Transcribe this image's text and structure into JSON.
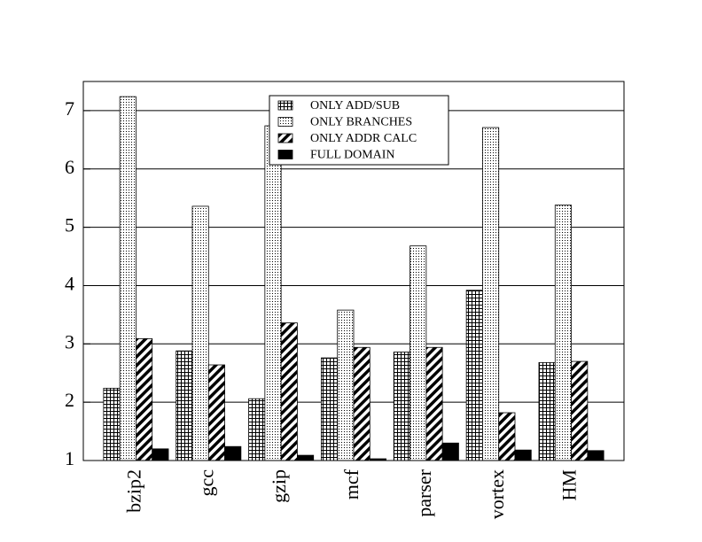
{
  "chart_data": {
    "type": "bar",
    "categories": [
      "bzip2",
      "gcc",
      "gzip",
      "mcf",
      "parser",
      "vortex",
      "HM"
    ],
    "series": [
      {
        "name": "ONLY ADD/SUB",
        "color": "#000000",
        "pattern": "crosshatch",
        "values": [
          2.24,
          2.88,
          2.06,
          2.76,
          2.86,
          3.92,
          2.68
        ]
      },
      {
        "name": "ONLY BRANCHES",
        "color": "#000000",
        "pattern": "dots",
        "values": [
          7.24,
          5.36,
          6.74,
          3.58,
          4.68,
          6.71,
          5.38
        ]
      },
      {
        "name": "ONLY ADDR CALC",
        "color": "#000000",
        "pattern": "diagonal",
        "values": [
          3.09,
          2.64,
          3.36,
          2.94,
          2.94,
          1.82,
          2.7
        ]
      },
      {
        "name": "FULL DOMAIN",
        "color": "#000000",
        "pattern": "solid",
        "values": [
          1.2,
          1.24,
          1.09,
          1.03,
          1.3,
          1.18,
          1.17
        ]
      }
    ],
    "ylim": [
      1,
      7.5
    ],
    "yticks": [
      1,
      2,
      3,
      4,
      5,
      6,
      7
    ],
    "grid": true,
    "legend": "upper center"
  }
}
